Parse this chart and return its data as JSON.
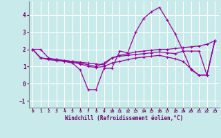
{
  "xlabel": "Windchill (Refroidissement éolien,°C)",
  "ylabel": "",
  "background_color": "#c8eaea",
  "grid_color": "#ffffff",
  "line_color": "#990099",
  "xlim": [
    -0.5,
    23.5
  ],
  "ylim": [
    -1.4,
    4.8
  ],
  "yticks": [
    -1,
    0,
    1,
    2,
    3,
    4
  ],
  "xticks": [
    0,
    1,
    2,
    3,
    4,
    5,
    6,
    7,
    8,
    9,
    10,
    11,
    12,
    13,
    14,
    15,
    16,
    17,
    18,
    19,
    20,
    21,
    22,
    23
  ],
  "series": [
    [
      2.0,
      2.0,
      1.5,
      1.4,
      1.3,
      1.2,
      0.8,
      -0.35,
      -0.35,
      0.9,
      0.9,
      1.9,
      1.8,
      3.0,
      3.8,
      4.2,
      4.45,
      3.7,
      2.9,
      1.9,
      0.8,
      0.5,
      0.5,
      2.5
    ],
    [
      2.0,
      1.5,
      1.45,
      1.4,
      1.35,
      1.3,
      1.2,
      1.1,
      1.0,
      1.2,
      1.5,
      1.65,
      1.75,
      1.85,
      1.9,
      1.95,
      2.0,
      2.0,
      2.05,
      2.1,
      2.15,
      2.2,
      2.3,
      2.5
    ],
    [
      2.0,
      1.5,
      1.4,
      1.35,
      1.3,
      1.25,
      1.15,
      1.0,
      0.95,
      1.0,
      1.2,
      1.3,
      1.4,
      1.5,
      1.55,
      1.6,
      1.65,
      1.55,
      1.45,
      1.3,
      0.85,
      0.5,
      0.5,
      2.5
    ],
    [
      2.0,
      1.5,
      1.45,
      1.4,
      1.35,
      1.3,
      1.25,
      1.2,
      1.15,
      1.1,
      1.5,
      1.6,
      1.65,
      1.7,
      1.75,
      1.8,
      1.85,
      1.8,
      1.75,
      1.9,
      1.9,
      1.9,
      0.5,
      2.5
    ]
  ]
}
